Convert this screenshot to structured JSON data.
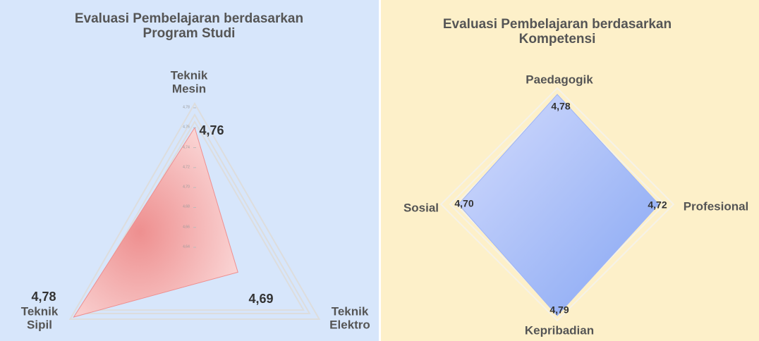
{
  "chart_data": [
    {
      "type": "radar",
      "title": "Evaluasi Pembelajaran berdasarkan Program Studi",
      "categories": [
        "Teknik Mesin",
        "Teknik Elektro",
        "Teknik Sipil"
      ],
      "values": [
        4.76,
        4.69,
        4.78
      ],
      "value_labels": [
        "4,76",
        "4,69",
        "4,78"
      ],
      "color": "#ee8f8f",
      "rlim": [
        4.64,
        4.78
      ],
      "rticks": [
        {
          "value": 4.78,
          "label": "4,78"
        },
        {
          "value": 4.76,
          "label": "4,76"
        },
        {
          "value": 4.74,
          "label": "4,74"
        },
        {
          "value": 4.72,
          "label": "4,72"
        },
        {
          "value": 4.7,
          "label": "4,70"
        },
        {
          "value": 4.68,
          "label": "4,68"
        },
        {
          "value": 4.66,
          "label": "4,66"
        },
        {
          "value": 4.64,
          "label": "4,64"
        }
      ]
    },
    {
      "type": "radar",
      "title": "Evaluasi Pembelajaran berdasarkan Kompetensi",
      "categories": [
        "Paedagogik",
        "Profesional",
        "Kepribadian",
        "Sosial"
      ],
      "values": [
        4.78,
        4.72,
        4.79,
        4.7
      ],
      "value_labels": [
        "4,78",
        "4,72",
        "4,79",
        "4,70"
      ],
      "color": "#9db4f7",
      "rlim": [
        4.0,
        4.8
      ]
    }
  ]
}
